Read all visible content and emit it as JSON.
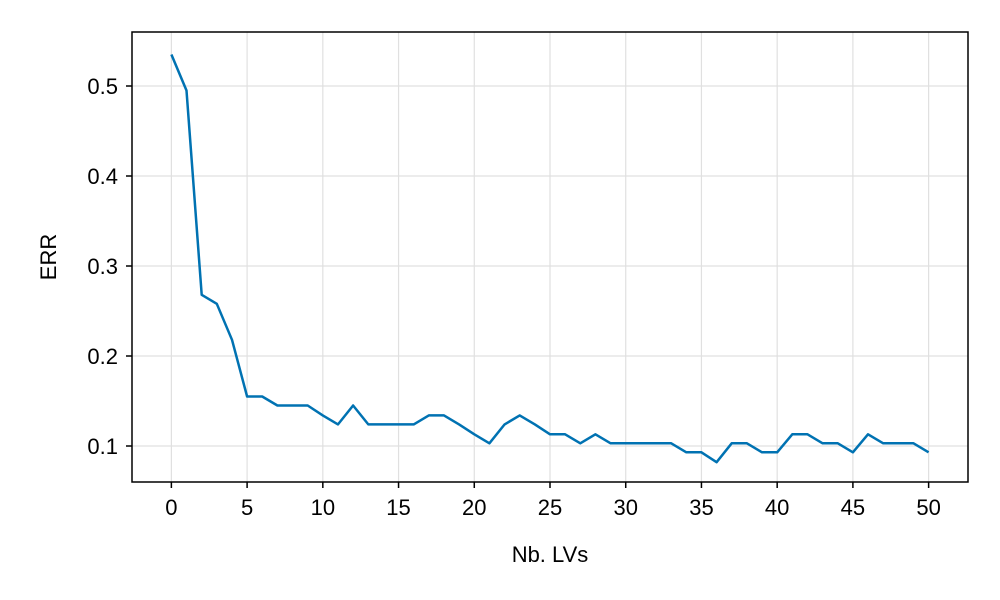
{
  "chart_data": {
    "type": "line",
    "title": "",
    "xlabel": "Nb. LVs",
    "ylabel": "ERR",
    "xlim": [
      -2.6,
      52.6
    ],
    "ylim": [
      0.06,
      0.56
    ],
    "xticks": [
      0,
      5,
      10,
      15,
      20,
      25,
      30,
      35,
      40,
      45,
      50
    ],
    "xtick_labels": [
      "0",
      "5",
      "10",
      "15",
      "20",
      "25",
      "30",
      "35",
      "40",
      "45",
      "50"
    ],
    "yticks": [
      0.1,
      0.2,
      0.3,
      0.4,
      0.5
    ],
    "ytick_labels": [
      "0.1",
      "0.2",
      "0.3",
      "0.4",
      "0.5"
    ],
    "grid": true,
    "legend": false,
    "colors": {
      "line": "#0072b2",
      "grid": "#e0e0e0",
      "frame": "#000000"
    },
    "series": [
      {
        "x": [
          0,
          1,
          2,
          3,
          4,
          5,
          6,
          7,
          8,
          9,
          10,
          11,
          12,
          13,
          14,
          15,
          16,
          17,
          18,
          19,
          20,
          21,
          22,
          23,
          24,
          25,
          26,
          27,
          28,
          29,
          30,
          31,
          32,
          33,
          34,
          35,
          36,
          37,
          38,
          39,
          40,
          41,
          42,
          43,
          44,
          45,
          46,
          47,
          48,
          49,
          50
        ],
        "values": [
          0.535,
          0.495,
          0.268,
          0.258,
          0.218,
          0.155,
          0.155,
          0.145,
          0.145,
          0.145,
          0.134,
          0.124,
          0.145,
          0.124,
          0.124,
          0.124,
          0.124,
          0.134,
          0.134,
          0.124,
          0.113,
          0.103,
          0.124,
          0.134,
          0.124,
          0.113,
          0.113,
          0.103,
          0.113,
          0.103,
          0.103,
          0.103,
          0.103,
          0.103,
          0.093,
          0.093,
          0.082,
          0.103,
          0.103,
          0.093,
          0.093,
          0.113,
          0.113,
          0.103,
          0.103,
          0.093,
          0.113,
          0.103,
          0.103,
          0.103,
          0.093
        ]
      }
    ]
  }
}
